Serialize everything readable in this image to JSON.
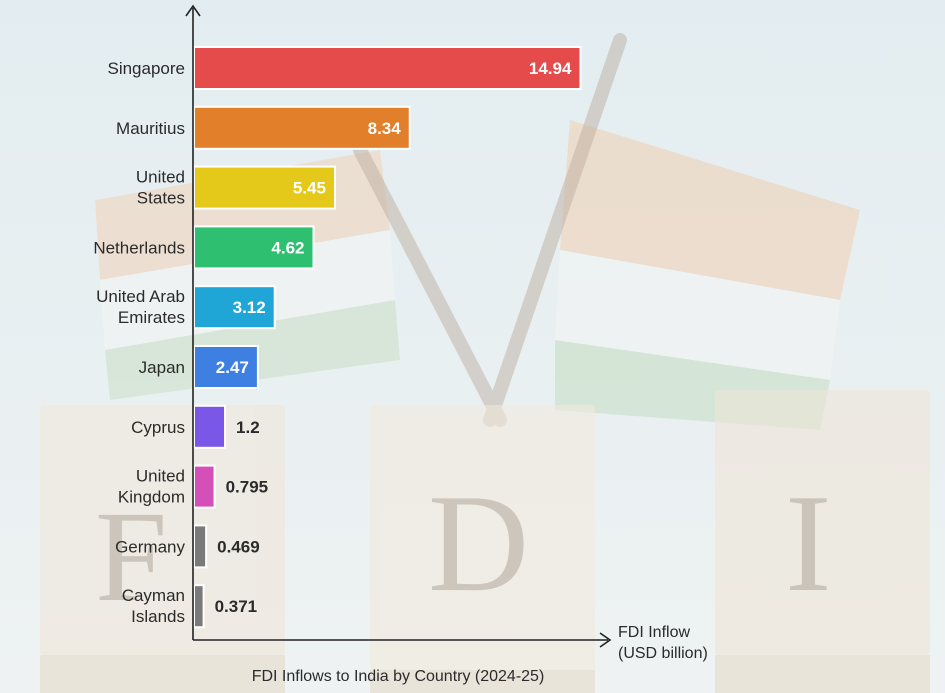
{
  "chart_data": {
    "type": "bar",
    "orientation": "horizontal",
    "categories": [
      [
        "Singapore"
      ],
      [
        "Mauritius"
      ],
      [
        "United",
        "States"
      ],
      [
        "Netherlands"
      ],
      [
        "United Arab",
        "Emirates"
      ],
      [
        "Japan"
      ],
      [
        "Cyprus"
      ],
      [
        "United",
        "Kingdom"
      ],
      [
        "Germany"
      ],
      [
        "Cayman",
        "Islands"
      ]
    ],
    "values": [
      14.94,
      8.34,
      5.45,
      4.62,
      3.12,
      2.47,
      1.2,
      0.795,
      0.469,
      0.371
    ],
    "value_labels": [
      "14.94",
      "8.34",
      "5.45",
      "4.62",
      "3.12",
      "2.47",
      "1.2",
      "0.795",
      "0.469",
      "0.371"
    ],
    "colors": [
      "#e64b4b",
      "#e27f2a",
      "#e4c91a",
      "#2fbf71",
      "#1fa5d6",
      "#3e7fe2",
      "#7a57e6",
      "#d44fb8",
      "#7a7a7a",
      "#7a7a7a"
    ],
    "xlabel": [
      "FDI Inflow",
      "(USD billion)"
    ],
    "caption": "FDI Inflows to India by Country (2024-25)",
    "xlim": [
      0,
      15
    ],
    "grid": false,
    "legend": "none"
  }
}
